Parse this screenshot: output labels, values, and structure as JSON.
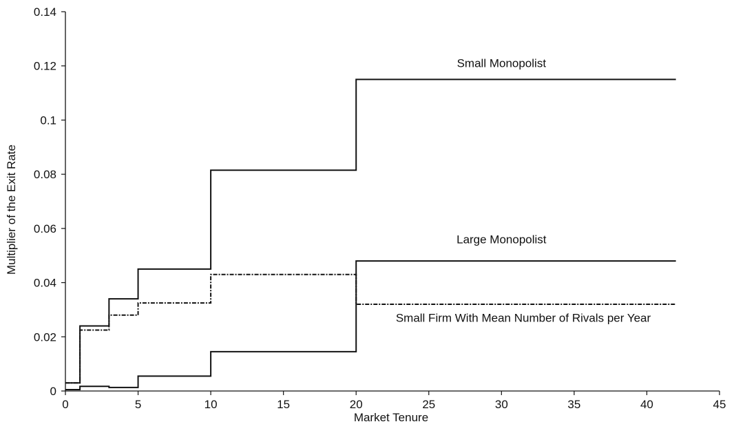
{
  "chart_data": {
    "type": "line",
    "step": "post",
    "xlabel": "Market Tenure",
    "ylabel": "Multiplier of the Exit Rate",
    "xlim": [
      0,
      45
    ],
    "ylim": [
      0,
      0.14
    ],
    "x_ticks": [
      "0",
      "5",
      "10",
      "15",
      "20",
      "25",
      "30",
      "35",
      "40",
      "45"
    ],
    "x_tick_values": [
      0,
      5,
      10,
      15,
      20,
      25,
      30,
      35,
      40,
      45
    ],
    "y_ticks": [
      "0",
      "0.02",
      "0.04",
      "0.06",
      "0.08",
      "0.1",
      "0.12",
      "0.14"
    ],
    "y_tick_values": [
      0,
      0.02,
      0.04,
      0.06,
      0.08,
      0.1,
      0.12,
      0.14
    ],
    "grid": false,
    "series": [
      {
        "name": "Small Monopolist",
        "style": "solid",
        "x": [
          0,
          1,
          3,
          5,
          10,
          20,
          42
        ],
        "y": [
          0.003,
          0.024,
          0.034,
          0.045,
          0.0815,
          0.115,
          0.115
        ]
      },
      {
        "name": "Large Monopolist",
        "style": "solid",
        "x": [
          0,
          1,
          3,
          5,
          10,
          20,
          42
        ],
        "y": [
          0.0005,
          0.0017,
          0.0013,
          0.0055,
          0.0145,
          0.048,
          0.048
        ]
      },
      {
        "name": "Small Firm With Mean Number of Rivals per Year",
        "style": "dashdot",
        "x": [
          0,
          1,
          3,
          5,
          10,
          20,
          42
        ],
        "y": [
          0.003,
          0.0225,
          0.028,
          0.0325,
          0.043,
          0.032,
          0.032
        ]
      }
    ],
    "annotations": [
      {
        "text": "Small Monopolist",
        "x": 30,
        "y": 0.1195
      },
      {
        "text": "Large Monopolist",
        "x": 30,
        "y": 0.0545
      },
      {
        "text": "Small Firm With Mean Number of Rivals per Year",
        "x": 31.5,
        "y": 0.0255
      }
    ],
    "colors": {
      "line": "#111111",
      "axis": "#111111"
    }
  }
}
